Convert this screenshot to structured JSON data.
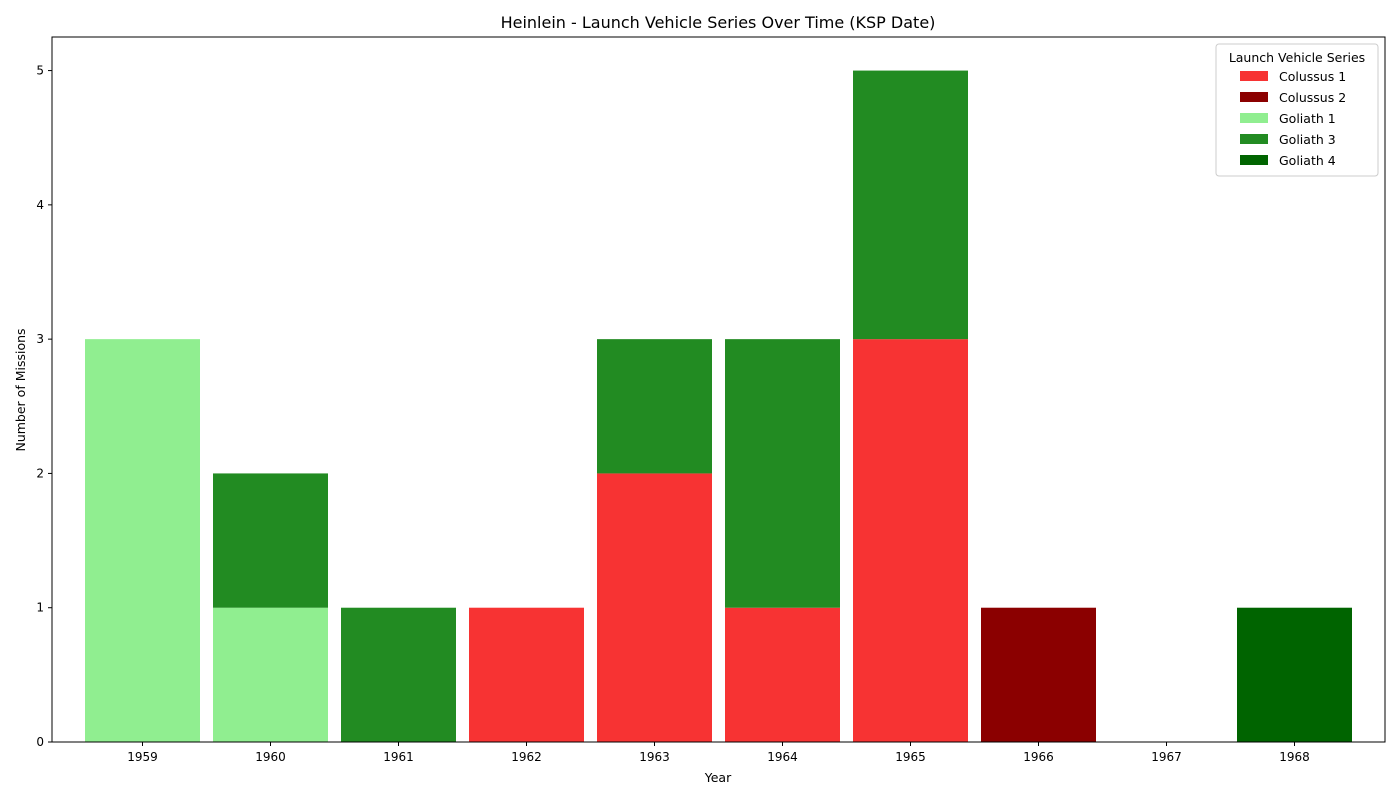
{
  "chart_data": {
    "type": "bar",
    "stacked": true,
    "title": "Heinlein - Launch Vehicle Series Over Time (KSP Date)",
    "xlabel": "Year",
    "ylabel": "Number of Missions",
    "categories": [
      "1959",
      "1960",
      "1961",
      "1962",
      "1963",
      "1964",
      "1965",
      "1966",
      "1967",
      "1968"
    ],
    "ylim": [
      0,
      5.25
    ],
    "yticks": [
      0,
      1,
      2,
      3,
      4,
      5
    ],
    "grid": false,
    "legend": {
      "title": "Launch Vehicle Series",
      "placement": "top-right"
    },
    "series": [
      {
        "name": "Colussus 1",
        "color": "#f73333",
        "values": [
          0,
          0,
          0,
          1,
          2,
          1,
          3,
          0,
          0,
          0
        ]
      },
      {
        "name": "Colussus 2",
        "color": "#8b0000",
        "values": [
          0,
          0,
          0,
          0,
          0,
          0,
          0,
          1,
          0,
          0
        ]
      },
      {
        "name": "Goliath 1",
        "color": "#90ee90",
        "values": [
          3,
          1,
          0,
          0,
          0,
          0,
          0,
          0,
          0,
          0
        ]
      },
      {
        "name": "Goliath 3",
        "color": "#228b22",
        "values": [
          0,
          1,
          1,
          0,
          1,
          2,
          2,
          0,
          0,
          0
        ]
      },
      {
        "name": "Goliath 4",
        "color": "#006400",
        "values": [
          0,
          0,
          0,
          0,
          0,
          0,
          0,
          0,
          0,
          1
        ]
      }
    ]
  }
}
